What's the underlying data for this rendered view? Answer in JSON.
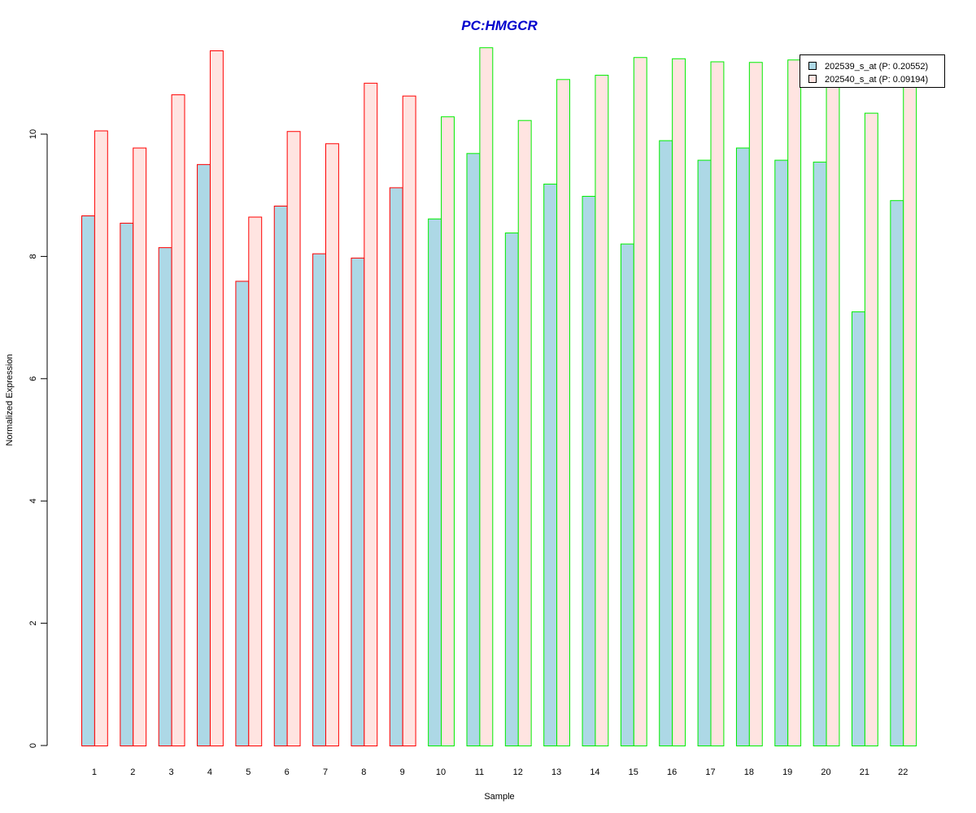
{
  "chart_data": {
    "type": "bar",
    "title": "PC:HMGCR",
    "xlabel": "Sample",
    "ylabel": "Normalized Expression",
    "ylim": [
      0,
      11.5
    ],
    "yticks": [
      0,
      2,
      4,
      6,
      8,
      10
    ],
    "categories": [
      "1",
      "2",
      "3",
      "4",
      "5",
      "6",
      "7",
      "8",
      "9",
      "10",
      "11",
      "12",
      "13",
      "14",
      "15",
      "16",
      "17",
      "18",
      "19",
      "20",
      "21",
      "22"
    ],
    "groups": [
      {
        "samples": [
          "1",
          "2",
          "3",
          "4",
          "5",
          "6",
          "7",
          "8",
          "9"
        ],
        "border_color": "#ff0000"
      },
      {
        "samples": [
          "10",
          "11",
          "12",
          "13",
          "14",
          "15",
          "16",
          "17",
          "18",
          "19",
          "20",
          "21",
          "22"
        ],
        "border_color": "#00ee00"
      }
    ],
    "series": [
      {
        "name": "202539_s_at (P: 0.20552)",
        "fill": "#add8e6",
        "values": [
          8.67,
          8.55,
          8.15,
          9.51,
          7.6,
          8.83,
          8.05,
          7.98,
          9.13,
          8.62,
          9.69,
          8.39,
          9.19,
          8.99,
          8.21,
          9.9,
          9.58,
          9.78,
          9.58,
          9.55,
          7.1,
          8.92
        ]
      },
      {
        "name": "202540_s_at (P: 0.09194)",
        "fill": "#ffe4e1",
        "values": [
          10.06,
          9.78,
          10.65,
          11.37,
          8.65,
          10.05,
          9.85,
          10.84,
          10.63,
          10.29,
          11.42,
          10.23,
          10.9,
          10.97,
          11.26,
          11.24,
          11.19,
          11.18,
          11.22,
          10.9,
          10.35,
          10.9
        ]
      }
    ],
    "legend_position": "top-right",
    "colors": {
      "title": "#0000cd",
      "axis": "#000000"
    }
  }
}
